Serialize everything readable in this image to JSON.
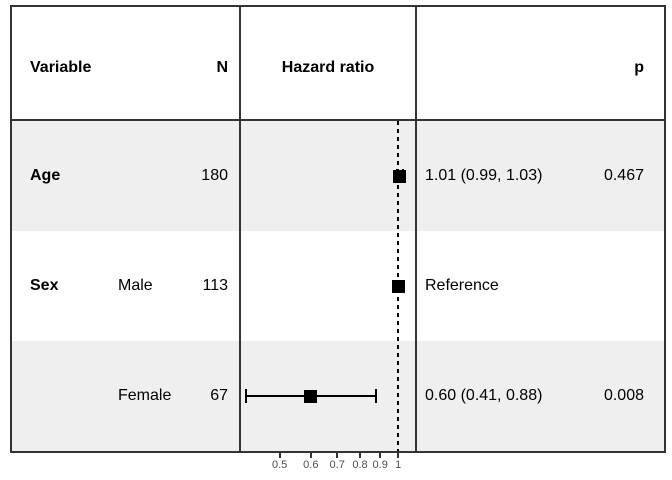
{
  "header": {
    "variable": "Variable",
    "n": "N",
    "hazard_ratio": "Hazard ratio",
    "p": "p"
  },
  "rows": [
    {
      "variable": "Age",
      "level": "",
      "n": "180",
      "estimate": "1.01 (0.99, 1.03)",
      "p": "0.467"
    },
    {
      "variable": "Sex",
      "level": "Male",
      "n": "113",
      "estimate": "Reference",
      "p": ""
    },
    {
      "variable": "",
      "level": "Female",
      "n": "67",
      "estimate": "0.60 (0.41, 0.88)",
      "p": "0.008"
    }
  ],
  "chart_data": {
    "type": "scatter",
    "subtype": "forest-plot",
    "title": "Hazard ratio",
    "x_scale": "log",
    "xlim": [
      0.399,
      1.103
    ],
    "reference_line": 1,
    "x_ticks": [
      {
        "value": 0.5,
        "label": "0.5"
      },
      {
        "value": 0.6,
        "label": "0.6"
      },
      {
        "value": 0.7,
        "label": "0.7"
      },
      {
        "value": 0.8,
        "label": "0.8"
      },
      {
        "value": 0.9,
        "label": "0.9"
      },
      {
        "value": 1,
        "label": "1"
      }
    ],
    "points": [
      {
        "row": "Age",
        "hr": 1.01,
        "ci_low": 0.99,
        "ci_high": 1.03,
        "p": 0.467,
        "reference": false
      },
      {
        "row": "Sex Male",
        "hr": 1.0,
        "ci_low": null,
        "ci_high": null,
        "p": null,
        "reference": true
      },
      {
        "row": "Sex Female",
        "hr": 0.6,
        "ci_low": 0.41,
        "ci_high": 0.88,
        "p": 0.008,
        "reference": false
      }
    ],
    "rows_n": [
      180,
      113,
      67
    ],
    "grid": false,
    "legend": false
  },
  "colors": {
    "stripe": "#EFEFEF",
    "line": "#333333",
    "marker": "#000000",
    "tick_text": "#4D4D4D"
  }
}
